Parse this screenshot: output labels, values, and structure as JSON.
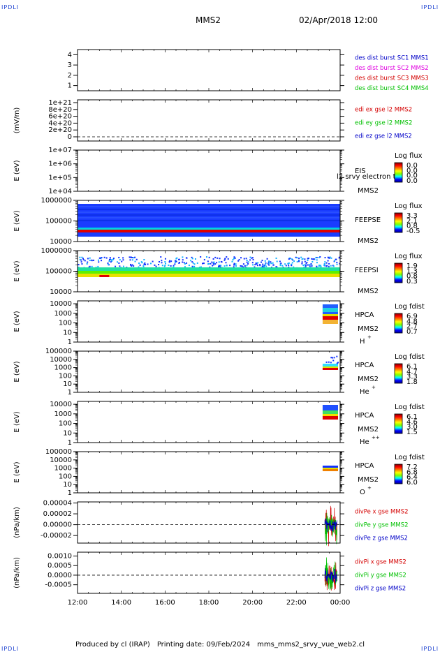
{
  "header": {
    "corner_tl": "IPDLI",
    "corner_tr": "IPDLI",
    "corner_bl": "IPDLI",
    "corner_br": "IPDLI",
    "title": "MMS2",
    "date": "02/Apr/2018 12:00"
  },
  "footer": {
    "produced_by": "Produced by cl (IRAP)",
    "printing_date": "Printing date: 09/Feb/2024",
    "file": "mms_mms2_srvy_vue_web2.cl"
  },
  "colors": {
    "red": "#d40000",
    "magenta": "#e000e0",
    "green": "#00c000",
    "blue": "#0000c8"
  },
  "chart_data": {
    "type": "heatmap",
    "x_ticks": [
      "12:00",
      "14:00",
      "16:00",
      "18:00",
      "20:00",
      "22:00",
      "00:00"
    ],
    "x_range_hours": [
      12,
      24
    ],
    "panels": [
      {
        "id": "des-burst",
        "yticks": [
          "4",
          "3",
          "2",
          "1"
        ],
        "yrange": [
          0.5,
          4.5
        ],
        "legend": [
          {
            "text": "des dist burst SC1 MMS1",
            "color": "#0000c8"
          },
          {
            "text": "des dist burst SC2 MMS2",
            "color": "#e000e0"
          },
          {
            "text": "des dist burst SC3 MMS3",
            "color": "#d40000"
          },
          {
            "text": "des dist burst SC4 MMS4",
            "color": "#00c000"
          }
        ]
      },
      {
        "id": "edi",
        "ylabel": "(mV/m)",
        "yticks": [
          "1e+21",
          "8e+20",
          "6e+20",
          "4e+20",
          "2e+20",
          "0"
        ],
        "yrange": [
          0,
          1e+21
        ],
        "zero_line": true,
        "legend": [
          {
            "text": "edi ex gse l2 MMS2",
            "color": "#d40000"
          },
          {
            "text": "edi ey gse l2 MMS2",
            "color": "#00c000"
          },
          {
            "text": "edi ez gse l2 MMS2",
            "color": "#0000c8"
          }
        ]
      },
      {
        "id": "eis",
        "ylabel": "E (eV)",
        "yticks": [
          "1e+07",
          "1e+06",
          "1e+05",
          "1e+04"
        ],
        "ylog": [
          4,
          7
        ],
        "labels": [
          "EIS",
          "MMS2"
        ],
        "overlay_text": "l2 srvy electron to",
        "colorbar": {
          "title": "Log flux",
          "ticks": [
            "0.0",
            "0.0",
            "0.0",
            "0.0"
          ]
        }
      },
      {
        "id": "feepse",
        "ylabel": "E (eV)",
        "yticks": [
          "1000000",
          "100000",
          "10000"
        ],
        "ylog": [
          4,
          6
        ],
        "labels": [
          "FEEPSE",
          "MMS2"
        ],
        "colorbar": {
          "title": "Log flux",
          "ticks": [
            "3.3",
            "2.1",
            "0.8",
            "-0.5"
          ]
        }
      },
      {
        "id": "feepsi",
        "ylabel": "E (eV)",
        "yticks": [
          "1000000",
          "100000",
          "10000"
        ],
        "ylog": [
          4,
          6
        ],
        "labels": [
          "FEEPSI",
          "MMS2"
        ],
        "colorbar": {
          "title": "Log flux",
          "ticks": [
            "1.9",
            "1.3",
            "0.8",
            "0.3"
          ]
        }
      },
      {
        "id": "hpca-h",
        "ylabel": "E (eV)",
        "yticks": [
          "10000",
          "1000",
          "100",
          "10",
          "1"
        ],
        "ylog": [
          0,
          4.3
        ],
        "labels": [
          "HPCA",
          "MMS2"
        ],
        "species": "H",
        "species_sup": "+",
        "colorbar": {
          "title": "Log fdist",
          "ticks": [
            "6.9",
            "4.8",
            "2.7",
            "0.7"
          ]
        }
      },
      {
        "id": "hpca-he",
        "ylabel": "E (eV)",
        "yticks": [
          "100000",
          "10000",
          "1000",
          "100",
          "10",
          "1"
        ],
        "ylog": [
          0,
          5
        ],
        "labels": [
          "HPCA",
          "MMS2"
        ],
        "species": "He",
        "species_sup": "+",
        "colorbar": {
          "title": "Log fdist",
          "ticks": [
            "6.1",
            "4.7",
            "3.3",
            "1.8"
          ]
        }
      },
      {
        "id": "hpca-hepp",
        "ylabel": "E (eV)",
        "yticks": [
          "10000",
          "1000",
          "100",
          "10",
          "1"
        ],
        "ylog": [
          0,
          4.3
        ],
        "labels": [
          "HPCA",
          "MMS2"
        ],
        "species": "He",
        "species_sup": "++",
        "colorbar": {
          "title": "Log fdist",
          "ticks": [
            "6.1",
            "4.6",
            "3.0",
            "1.5"
          ]
        }
      },
      {
        "id": "hpca-o",
        "ylabel": "E (eV)",
        "yticks": [
          "100000",
          "10000",
          "1000",
          "100",
          "10",
          "1"
        ],
        "ylog": [
          0,
          5
        ],
        "labels": [
          "HPCA",
          "MMS2"
        ],
        "species": "O",
        "species_sup": "+",
        "colorbar": {
          "title": "Log fdist",
          "ticks": [
            "7.2",
            "6.8",
            "6.4",
            "6.0"
          ]
        }
      },
      {
        "id": "divpe",
        "ylabel": "(nPa/km)",
        "yticks": [
          "0.00004",
          "0.00002",
          "0.00000",
          "-0.00002"
        ],
        "yvals": [
          4e-05,
          2e-05,
          0,
          -2e-05
        ],
        "yrange": [
          -3.4e-05,
          4.2e-05
        ],
        "zero_line": true,
        "legend": [
          {
            "text": "divPe x gse MMS2",
            "color": "#d40000"
          },
          {
            "text": "divPe y gse MMS2",
            "color": "#00c000"
          },
          {
            "text": "divPe z gse MMS2",
            "color": "#0000c8"
          }
        ]
      },
      {
        "id": "divpi",
        "ylabel": "(nPa/km)",
        "yticks": [
          "0.0010",
          "0.0005",
          "0.0000",
          "-0.0005"
        ],
        "yvals": [
          0.001,
          0.0005,
          0,
          -0.0005
        ],
        "yrange": [
          -0.00095,
          0.0012
        ],
        "zero_line": true,
        "legend": [
          {
            "text": "divPi x gse MMS2",
            "color": "#d40000"
          },
          {
            "text": "divPi y gse MMS2",
            "color": "#00c000"
          },
          {
            "text": "divPi z gse MMS2",
            "color": "#0000c8"
          }
        ]
      }
    ]
  }
}
